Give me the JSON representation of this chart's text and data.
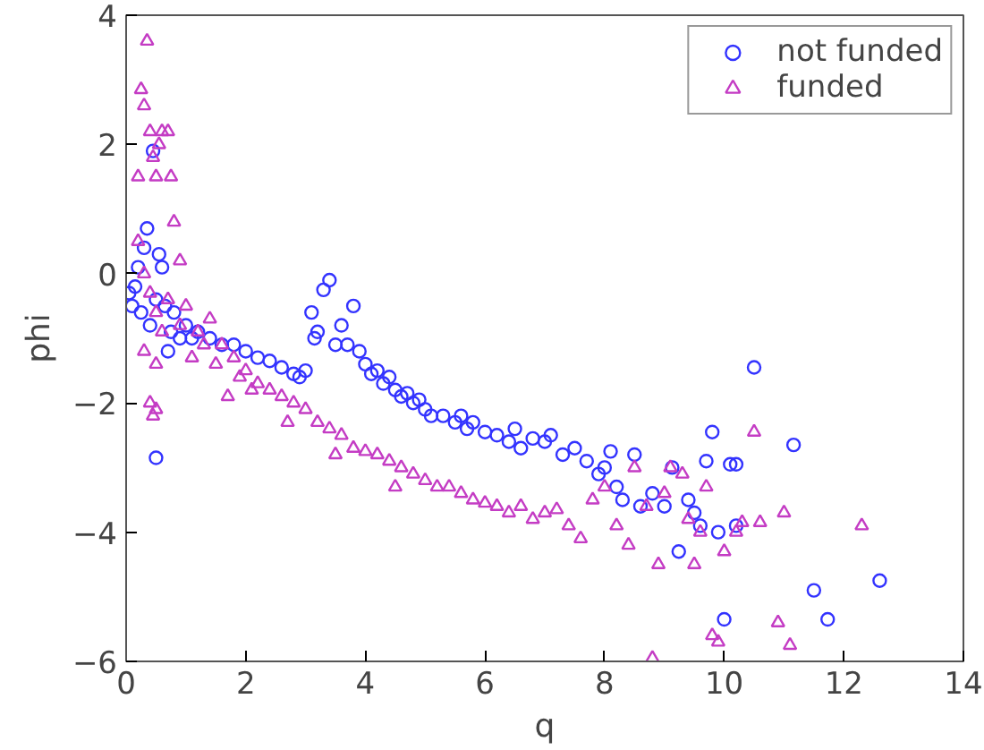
{
  "chart_data": {
    "type": "scatter",
    "xlabel": "q",
    "ylabel": "phi",
    "xlim": [
      0,
      14
    ],
    "ylim": [
      -6,
      4
    ],
    "xticks": [
      0,
      2,
      4,
      6,
      8,
      10,
      12,
      14
    ],
    "yticks": [
      {
        "value": -6,
        "label": "−6"
      },
      {
        "value": -4,
        "label": "−4"
      },
      {
        "value": -2,
        "label": "−2"
      },
      0,
      2,
      4
    ],
    "grid": false,
    "legend": "top right",
    "series": [
      {
        "name": "not funded",
        "color": "#3333ff",
        "marker": "circle",
        "x": [
          0.05,
          0.1,
          0.15,
          0.2,
          0.25,
          0.3,
          0.35,
          0.4,
          0.45,
          0.5,
          0.5,
          0.55,
          0.6,
          0.65,
          0.7,
          0.75,
          0.8,
          0.9,
          1.0,
          1.1,
          1.2,
          1.4,
          1.6,
          1.8,
          2.0,
          2.2,
          2.4,
          2.6,
          2.8,
          2.9,
          3.0,
          3.1,
          3.15,
          3.2,
          3.3,
          3.4,
          3.5,
          3.6,
          3.7,
          3.8,
          3.9,
          4.0,
          4.1,
          4.2,
          4.3,
          4.4,
          4.5,
          4.6,
          4.7,
          4.8,
          4.9,
          5.0,
          5.1,
          5.3,
          5.5,
          5.6,
          5.7,
          5.8,
          6.0,
          6.2,
          6.4,
          6.5,
          6.6,
          6.8,
          7.0,
          7.1,
          7.3,
          7.5,
          7.7,
          7.9,
          8.0,
          8.1,
          8.2,
          8.3,
          8.5,
          8.6,
          8.8,
          9.0,
          9.13,
          9.24,
          9.4,
          9.5,
          9.6,
          9.7,
          9.8,
          9.9,
          10.0,
          10.1,
          10.2,
          10.2,
          10.5,
          11.16,
          11.5,
          11.73,
          12.6
        ],
        "values": [
          -0.3,
          -0.5,
          -0.2,
          0.1,
          -0.6,
          0.4,
          0.7,
          -0.8,
          1.9,
          -0.4,
          -2.85,
          0.3,
          0.1,
          -0.5,
          -1.2,
          -0.9,
          -0.6,
          -1.0,
          -0.8,
          -1.0,
          -0.9,
          -1.0,
          -1.1,
          -1.1,
          -1.2,
          -1.3,
          -1.35,
          -1.45,
          -1.55,
          -1.6,
          -1.5,
          -0.6,
          -1.0,
          -0.9,
          -0.25,
          -0.1,
          -1.1,
          -0.8,
          -1.1,
          -0.5,
          -1.2,
          -1.4,
          -1.55,
          -1.5,
          -1.7,
          -1.6,
          -1.8,
          -1.9,
          -1.85,
          -2.0,
          -1.95,
          -2.1,
          -2.2,
          -2.2,
          -2.3,
          -2.2,
          -2.4,
          -2.3,
          -2.45,
          -2.5,
          -2.6,
          -2.4,
          -2.7,
          -2.55,
          -2.6,
          -2.5,
          -2.8,
          -2.7,
          -2.9,
          -3.1,
          -3.0,
          -2.75,
          -3.3,
          -3.5,
          -2.8,
          -3.6,
          -3.4,
          -3.6,
          -3.0,
          -4.3,
          -3.5,
          -3.7,
          -3.9,
          -2.9,
          -2.45,
          -4.0,
          -5.35,
          -2.95,
          -2.95,
          -3.9,
          -1.45,
          -2.65,
          -4.9,
          -5.35,
          -4.75
        ]
      },
      {
        "name": "funded",
        "color": "#c43cc4",
        "marker": "triangle",
        "x": [
          0.2,
          0.25,
          0.3,
          0.35,
          0.4,
          0.45,
          0.5,
          0.55,
          0.6,
          0.7,
          0.75,
          0.8,
          0.9,
          0.2,
          0.3,
          0.4,
          0.5,
          0.6,
          0.4,
          0.45,
          0.5,
          0.3,
          0.5,
          0.7,
          0.9,
          1.0,
          1.1,
          1.2,
          1.3,
          1.4,
          1.5,
          1.6,
          1.7,
          1.8,
          1.9,
          2.0,
          2.1,
          2.2,
          2.4,
          2.6,
          2.7,
          2.8,
          3.0,
          3.2,
          3.4,
          3.5,
          3.6,
          3.8,
          4.0,
          4.2,
          4.4,
          4.5,
          4.6,
          4.8,
          5.0,
          5.2,
          5.4,
          5.6,
          5.8,
          6.0,
          6.2,
          6.4,
          6.6,
          6.8,
          7.0,
          7.2,
          7.4,
          7.6,
          7.8,
          8.0,
          8.2,
          8.4,
          8.5,
          8.7,
          8.8,
          8.9,
          9.0,
          9.1,
          9.3,
          9.4,
          9.5,
          9.6,
          9.7,
          9.8,
          9.9,
          10.0,
          10.2,
          10.3,
          10.5,
          10.6,
          10.9,
          11.0,
          11.1,
          12.3
        ],
        "values": [
          1.5,
          2.85,
          2.6,
          3.6,
          2.2,
          1.8,
          1.5,
          2.0,
          2.2,
          2.2,
          1.5,
          0.8,
          0.2,
          0.5,
          0.0,
          -0.3,
          -0.6,
          -0.9,
          -2.0,
          -2.2,
          -2.1,
          -1.2,
          -1.4,
          -0.4,
          -0.8,
          -0.5,
          -1.3,
          -0.9,
          -1.1,
          -0.7,
          -1.4,
          -1.1,
          -1.9,
          -1.3,
          -1.6,
          -1.5,
          -1.8,
          -1.7,
          -1.8,
          -1.9,
          -2.3,
          -2.0,
          -2.1,
          -2.3,
          -2.4,
          -2.8,
          -2.5,
          -2.7,
          -2.75,
          -2.8,
          -2.9,
          -3.3,
          -3.0,
          -3.1,
          -3.2,
          -3.3,
          -3.3,
          -3.4,
          -3.5,
          -3.55,
          -3.6,
          -3.7,
          -3.6,
          -3.8,
          -3.7,
          -3.65,
          -3.9,
          -4.1,
          -3.5,
          -3.3,
          -3.9,
          -4.2,
          -3.0,
          -3.6,
          -5.95,
          -4.5,
          -3.4,
          -3.0,
          -3.1,
          -3.8,
          -4.5,
          -4.0,
          -3.3,
          -5.6,
          -5.7,
          -4.3,
          -4.0,
          -3.85,
          -2.45,
          -3.85,
          -5.4,
          -3.7,
          -5.75,
          -3.9
        ]
      }
    ]
  }
}
